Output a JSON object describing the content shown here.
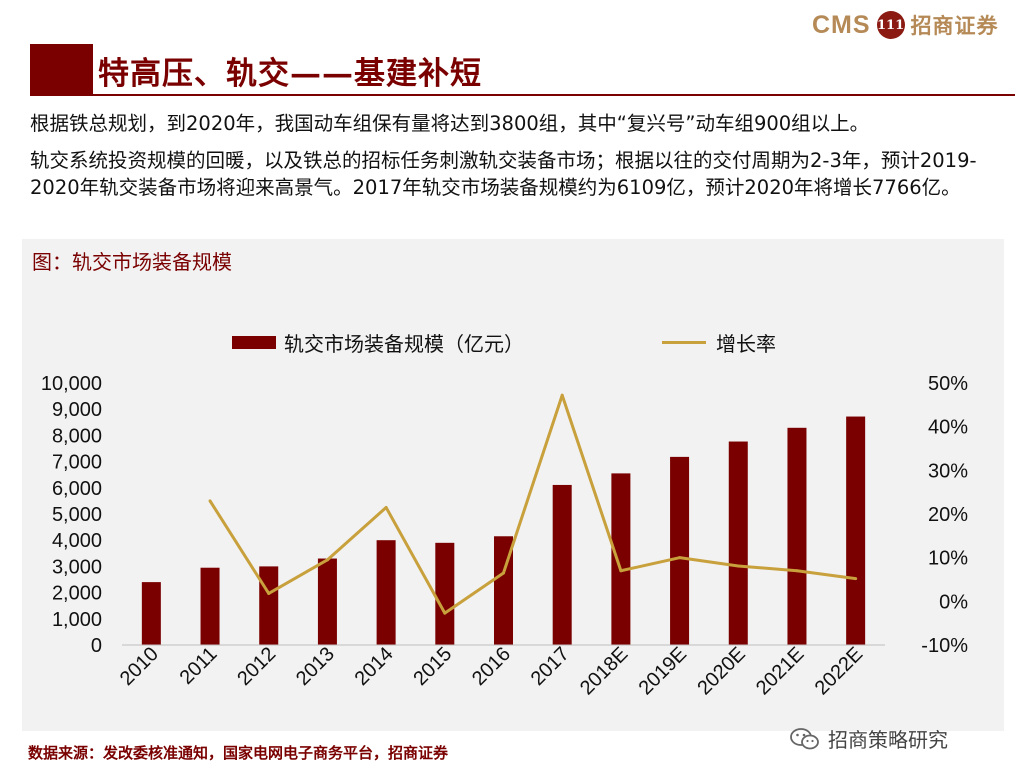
{
  "header": {
    "logo_cms": "CMS",
    "logo_mark": "111",
    "logo_text": "招商证券",
    "title": "特高压、轨交——基建补短"
  },
  "body": {
    "para1": "根据铁总规划，到2020年，我国动车组保有量将达到3800组，其中“复兴号”动车组900组以上。",
    "para2": "轨交系统投资规模的回暖，以及铁总的招标任务刺激轨交装备市场；根据以往的交付周期为2-3年，预计2019-2020年轨交装备市场将迎来高景气。2017年轨交市场装备规模约为6109亿，预计2020年将增长7766亿。"
  },
  "figure": {
    "title": "图：轨交市场装备规模"
  },
  "chart_data": {
    "type": "bar",
    "categories": [
      "2010",
      "2011",
      "2012",
      "2013",
      "2014",
      "2015",
      "2016",
      "2017",
      "2018E",
      "2019E",
      "2020E",
      "2021E",
      "2022E"
    ],
    "series": [
      {
        "name": "轨交市场装备规模（亿元）",
        "type": "bar",
        "axis": "left",
        "values": [
          2400,
          2950,
          3000,
          3300,
          4000,
          3900,
          4150,
          6109,
          6550,
          7180,
          7766,
          8290,
          8720
        ]
      },
      {
        "name": "增长率",
        "type": "line",
        "axis": "right",
        "values": [
          null,
          23.0,
          1.8,
          9.5,
          21.5,
          -2.7,
          6.5,
          47.2,
          7.0,
          10.0,
          8.1,
          7.0,
          5.2
        ]
      }
    ],
    "y_left": {
      "min": 0,
      "max": 10000,
      "step": 1000,
      "ticks": [
        "0",
        "1,000",
        "2,000",
        "3,000",
        "4,000",
        "5,000",
        "6,000",
        "7,000",
        "8,000",
        "9,000",
        "10,000"
      ]
    },
    "y_right": {
      "min": -10,
      "max": 50,
      "step": 10,
      "ticks": [
        "-10%",
        "0%",
        "10%",
        "20%",
        "30%",
        "40%",
        "50%"
      ]
    },
    "legend_position": "top",
    "grid": false,
    "colors": {
      "bar": "#7a0000",
      "line": "#c8a03c"
    }
  },
  "footer": {
    "source": "数据来源：发改委核准通知，国家电网电子商务平台，招商证券",
    "wechat_name": "招商策略研究",
    "wechat_icon": "wechat-icon"
  }
}
